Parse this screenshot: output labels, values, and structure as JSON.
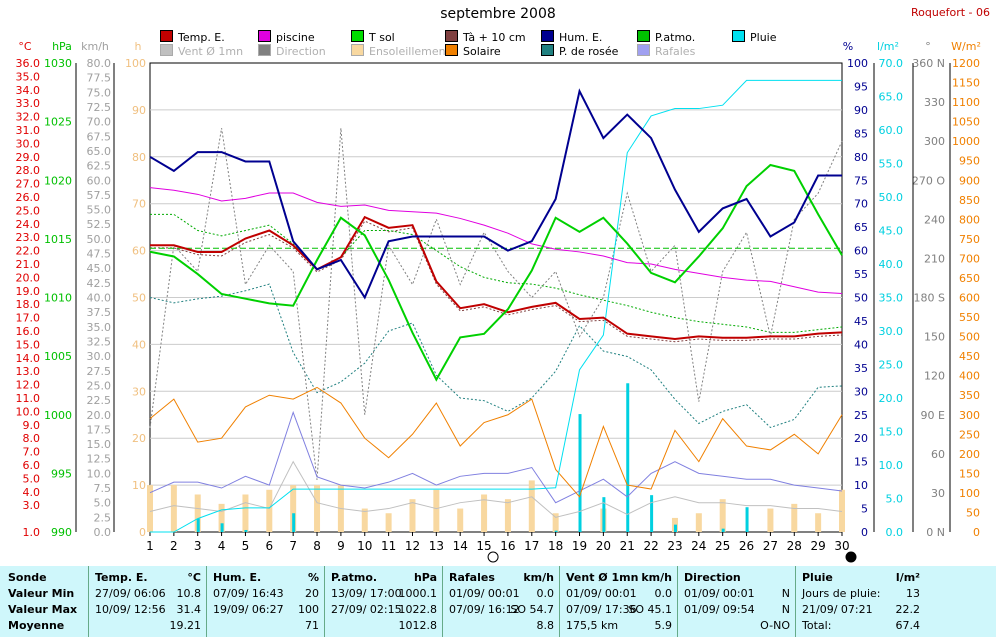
{
  "title": "septembre 2008",
  "station": "Roquefort - 06",
  "legend": [
    {
      "label": "Temp. E.",
      "color": "#c00000",
      "faded": false
    },
    {
      "label": "piscine",
      "color": "#e000e0",
      "faded": false
    },
    {
      "label": "T sol",
      "color": "#00dd00",
      "faded": false
    },
    {
      "label": "Tà + 10 cm",
      "color": "#804040",
      "faded": false
    },
    {
      "label": "Hum. E.",
      "color": "#000090",
      "faded": false
    },
    {
      "label": "P.atmo.",
      "color": "#00c000",
      "faded": false
    },
    {
      "label": "Pluie",
      "color": "#00e0f0",
      "faded": false
    },
    {
      "label": "Vent Ø 1mn",
      "color": "#c0c0c0",
      "faded": true
    },
    {
      "label": "Direction",
      "color": "#808080",
      "faded": true
    },
    {
      "label": "Ensoleillement",
      "color": "#f8d8a0",
      "faded": true
    },
    {
      "label": "Solaire",
      "color": "#f08000",
      "faded": false
    },
    {
      "label": "P. de rosée",
      "color": "#208080",
      "faded": false
    },
    {
      "label": "Rafales",
      "color": "#a0a0f0",
      "faded": true
    }
  ],
  "axes": {
    "temp": {
      "unit": "°C",
      "color": "#e00000",
      "ticks": [
        "36.0",
        "35.0",
        "34.0",
        "33.0",
        "32.0",
        "31.0",
        "30.0",
        "29.0",
        "28.0",
        "27.0",
        "26.0",
        "25.0",
        "24.0",
        "23.0",
        "22.0",
        "21.0",
        "20.0",
        "19.0",
        "18.0",
        "17.0",
        "16.0",
        "15.0",
        "14.0",
        "13.0",
        "12.0",
        "11.0",
        "10.0",
        "9.0",
        "8.0",
        "7.0",
        "6.0",
        "5.0",
        "4.0",
        "3.0",
        "1.0"
      ]
    },
    "pressure": {
      "unit": "hPa",
      "color": "#00c000",
      "ticks": [
        "1030",
        "1025",
        "1020",
        "1015",
        "1010",
        "1005",
        "1000",
        "995",
        "990"
      ]
    },
    "wind": {
      "unit": "km/h",
      "color": "#a0a0a0",
      "ticks": [
        "80.0",
        "77.5",
        "75.0",
        "72.5",
        "70.0",
        "67.5",
        "65.0",
        "62.5",
        "60.0",
        "57.5",
        "55.0",
        "52.5",
        "50.0",
        "47.5",
        "45.0",
        "42.5",
        "40.0",
        "37.5",
        "35.0",
        "32.5",
        "30.0",
        "27.5",
        "25.0",
        "22.5",
        "20.0",
        "17.5",
        "15.0",
        "12.5",
        "10.0",
        "7.5",
        "5.0",
        "2.5",
        "0.0"
      ]
    },
    "sun": {
      "unit": "h",
      "color": "#f0c080",
      "ticks": [
        "100",
        "90",
        "80",
        "70",
        "60",
        "50",
        "40",
        "30",
        "20",
        "10",
        "0"
      ]
    },
    "humidity": {
      "unit": "%",
      "color": "#000090",
      "ticks": [
        "100",
        "95",
        "90",
        "85",
        "80",
        "75",
        "70",
        "65",
        "60",
        "55",
        "50",
        "45",
        "40",
        "35",
        "30",
        "25",
        "20",
        "15",
        "10",
        "5",
        "0"
      ]
    },
    "rain": {
      "unit": "l/m²",
      "color": "#00d0e0",
      "ticks": [
        "70.0",
        "65.0",
        "60.0",
        "55.0",
        "50.0",
        "45.0",
        "40.0",
        "35.0",
        "30.0",
        "25.0",
        "20.0",
        "15.0",
        "10.0",
        "5.0",
        "0.0"
      ]
    },
    "direction": {
      "unit": "°",
      "color": "#808080",
      "ticks": [
        "360 N",
        "330",
        "300",
        "270 O",
        "240",
        "210",
        "180 S",
        "150",
        "120",
        "90 E",
        "60",
        "30",
        "0 N"
      ]
    },
    "solar": {
      "unit": "W/m²",
      "color": "#f08000",
      "ticks": [
        "1200",
        "1150",
        "1100",
        "1050",
        "1000",
        "950",
        "900",
        "850",
        "800",
        "750",
        "700",
        "650",
        "600",
        "550",
        "500",
        "450",
        "400",
        "350",
        "300",
        "250",
        "200",
        "150",
        "100",
        "50",
        "0"
      ]
    }
  },
  "chart_data": {
    "type": "line",
    "x": [
      1,
      2,
      3,
      4,
      5,
      6,
      7,
      8,
      9,
      10,
      11,
      12,
      13,
      14,
      15,
      16,
      17,
      18,
      19,
      20,
      21,
      22,
      23,
      24,
      25,
      26,
      27,
      28,
      29,
      30
    ],
    "moon_markers": [
      {
        "day": 15,
        "phase": "full"
      },
      {
        "day": 30,
        "phase": "new"
      }
    ],
    "series": [
      {
        "name": "Temp. E.",
        "axis": "temp",
        "color": "#c00000",
        "values": [
          22.4,
          22.4,
          21.9,
          21.9,
          22.9,
          23.5,
          22.4,
          20.6,
          21.5,
          24.5,
          23.7,
          23.9,
          19.7,
          17.7,
          18.0,
          17.4,
          17.8,
          18.1,
          16.9,
          17.0,
          15.8,
          15.6,
          15.4,
          15.6,
          15.5,
          15.5,
          15.6,
          15.6,
          15.8,
          15.9
        ]
      },
      {
        "name": "piscine",
        "axis": "temp",
        "color": "#e000e0",
        "values": [
          26.7,
          26.5,
          26.2,
          25.7,
          25.9,
          26.3,
          26.3,
          25.6,
          25.3,
          25.4,
          25.0,
          24.9,
          24.8,
          24.4,
          23.9,
          23.3,
          22.5,
          22.1,
          21.9,
          21.6,
          21.1,
          21.0,
          20.6,
          20.3,
          20.0,
          19.8,
          19.7,
          19.3,
          18.9,
          18.8
        ]
      }
    ],
    "series_p": [
      {
        "name": "P.atmo.",
        "axis": "pressure",
        "color": "#00d000",
        "values": [
          1013.9,
          1013.5,
          1012.0,
          1010.3,
          1009.9,
          1009.5,
          1009.3,
          1013.2,
          1016.8,
          1015.3,
          1011.5,
          1007.0,
          1003.0,
          1006.6,
          1006.9,
          1009.0,
          1012.3,
          1016.8,
          1015.6,
          1016.8,
          1014.6,
          1012.1,
          1011.3,
          1013.5,
          1015.9,
          1019.5,
          1021.3,
          1020.8,
          1017.1,
          1013.6
        ]
      }
    ],
    "series_h": [
      {
        "name": "Hum. E.",
        "axis": "humidity",
        "color": "#000090",
        "values": [
          80,
          77,
          81,
          81,
          79,
          79,
          62,
          56,
          58,
          50,
          62,
          63,
          63,
          63,
          63,
          60,
          62,
          71,
          94,
          84,
          89,
          84,
          73,
          64,
          69,
          71,
          63,
          66,
          76,
          76
        ]
      }
    ],
    "series_rain_cum": [
      {
        "name": "Pluie",
        "axis": "rain",
        "color": "#00e0f0",
        "values": [
          0,
          0,
          2,
          3.3,
          3.6,
          3.6,
          6.4,
          6.4,
          6.4,
          6.4,
          6.4,
          6.4,
          6.4,
          6.4,
          6.4,
          6.4,
          6.4,
          6.6,
          24.2,
          29.4,
          56.6,
          62.1,
          63.2,
          63.2,
          63.7,
          67.4,
          67.4,
          67.4,
          67.4,
          67.4
        ]
      }
    ],
    "series_solar": [
      {
        "name": "Solaire",
        "axis": "solar",
        "color": "#f08000",
        "values": [
          290,
          340,
          230,
          240,
          320,
          350,
          340,
          370,
          330,
          240,
          190,
          250,
          330,
          220,
          280,
          300,
          340,
          160,
          90,
          270,
          120,
          110,
          260,
          180,
          290,
          220,
          210,
          250,
          200,
          300
        ]
      }
    ],
    "sunshine_bars_h": [
      10,
      10,
      8,
      6,
      8,
      9,
      10,
      10,
      10,
      5,
      4,
      7,
      9,
      5,
      8,
      7,
      11,
      4,
      0,
      5,
      0,
      0,
      3,
      4,
      7,
      0,
      5,
      6,
      4,
      9
    ],
    "rain_daily_bars": [
      0,
      0,
      2,
      1.3,
      0.3,
      0,
      2.8,
      0,
      0,
      0,
      0,
      0,
      0,
      0,
      0,
      0,
      0,
      0.2,
      17.6,
      5.2,
      22.2,
      5.5,
      1.1,
      0,
      0.5,
      3.7,
      0,
      0,
      0,
      0
    ],
    "dotted_series": [
      {
        "name": "Tà + 10 cm",
        "axis": "temp",
        "color": "#804040",
        "values": [
          22.2,
          22.2,
          21.7,
          21.6,
          22.6,
          23.2,
          22.2,
          20.4,
          21.3,
          24.2,
          23.4,
          23.7,
          19.5,
          17.5,
          17.8,
          17.2,
          17.6,
          17.9,
          16.7,
          16.8,
          15.6,
          15.4,
          15.2,
          15.4,
          15.3,
          15.3,
          15.4,
          15.4,
          15.6,
          15.7
        ]
      },
      {
        "name": "T sol",
        "axis": "temp",
        "color": "#00aa00",
        "values": [
          24.7,
          24.7,
          23.5,
          23.1,
          23.5,
          23.9,
          22.5,
          20.6,
          21.5,
          23.5,
          23.5,
          23.2,
          22.0,
          20.8,
          20.0,
          19.6,
          19.5,
          19.2,
          18.7,
          18.3,
          17.9,
          17.4,
          17.0,
          16.7,
          16.5,
          16.3,
          15.9,
          15.9,
          16.1,
          16.3
        ]
      },
      {
        "name": "P. de rosée",
        "axis": "temp",
        "color": "#208080",
        "values": [
          18.5,
          18.1,
          18.4,
          18.6,
          19.0,
          19.5,
          14.4,
          11.4,
          12.2,
          13.6,
          16.0,
          16.6,
          12.7,
          11.0,
          10.8,
          10.0,
          11.0,
          13.0,
          16.4,
          14.5,
          14.1,
          13.1,
          10.9,
          9.1,
          10.0,
          10.5,
          8.8,
          9.4,
          11.8,
          11.9
        ]
      },
      {
        "name": "Direction",
        "axis": "direction",
        "color": "#808080",
        "values": [
          80,
          220,
          200,
          310,
          190,
          220,
          200,
          40,
          310,
          90,
          220,
          190,
          240,
          190,
          230,
          200,
          180,
          200,
          150,
          180,
          260,
          200,
          220,
          100,
          200,
          230,
          150,
          240,
          260,
          300
        ]
      }
    ],
    "series_wind": [
      {
        "name": "Rafales",
        "axis": "wind",
        "color": "#8080e0",
        "values": [
          6.7,
          8.5,
          8.5,
          7.5,
          9.5,
          8.0,
          20.4,
          9.4,
          8.0,
          7.5,
          8.5,
          10.0,
          8.0,
          9.5,
          10.0,
          10.0,
          11.0,
          5.0,
          7.0,
          9.0,
          6.0,
          10.0,
          12.0,
          10.0,
          9.5,
          9.0,
          9.0,
          8.0,
          7.5,
          7.0
        ]
      },
      {
        "name": "Vent Ø 1mn",
        "axis": "wind",
        "color": "#c0c0c0",
        "values": [
          3.5,
          4.5,
          4.0,
          3.5,
          5.0,
          4.0,
          12.0,
          5.0,
          4.0,
          3.5,
          4.0,
          5.0,
          4.0,
          5.0,
          5.5,
          5.0,
          6.0,
          2.5,
          3.5,
          5.0,
          3.0,
          5.0,
          6.0,
          5.0,
          5.0,
          4.5,
          4.5,
          4.0,
          4.0,
          3.5
        ]
      }
    ],
    "hline_pressure": 1014.2,
    "xlim": [
      1,
      30
    ]
  },
  "summary": {
    "row_labels": [
      "Sonde",
      "Valeur Min",
      "Valeur Max",
      "Moyenne"
    ],
    "columns": [
      {
        "title": "Temp. E.",
        "unit": "°C",
        "min_date": "27/09/ 06:06",
        "min_val": "10.8",
        "max_date": "10/09/ 12:56",
        "max_val": "31.4",
        "avg": "19.21"
      },
      {
        "title": "Hum. E.",
        "unit": "%",
        "min_date": "07/09/ 16:43",
        "min_val": "20",
        "max_date": "19/09/ 06:27",
        "max_val": "100",
        "avg": "71"
      },
      {
        "title": "P.atmo.",
        "unit": "hPa",
        "min_date": "13/09/ 17:00",
        "min_val": "1000.1",
        "max_date": "27/09/ 02:15",
        "max_val": "1022.8",
        "avg": "1012.8"
      },
      {
        "title": "Rafales",
        "unit": "km/h",
        "min_date": "01/09/ 00:01",
        "min_val": "0.0",
        "max_date": "07/09/ 16:12",
        "max_val": "SO 54.7",
        "avg": "8.8"
      },
      {
        "title": "Vent Ø 1mn",
        "unit": "km/h",
        "min_date": "01/09/ 00:01",
        "min_val": "0.0",
        "max_date": "07/09/ 17:36",
        "max_val": "SO 45.1",
        "avg_left": "175,5 km",
        "avg": "5.9"
      },
      {
        "title": "Direction",
        "unit": "",
        "min_date": "01/09/ 00:01",
        "min_val": "N",
        "max_date": "01/09/ 09:54",
        "max_val": "N",
        "avg": "O-NO"
      },
      {
        "title": "Pluie",
        "unit": "l/m²",
        "min_date": "Jours de pluie:",
        "min_val": "13",
        "max_date": "21/09/ 07:21",
        "max_val": "22.2",
        "avg_left": "Total:",
        "avg": "67.4"
      }
    ]
  }
}
